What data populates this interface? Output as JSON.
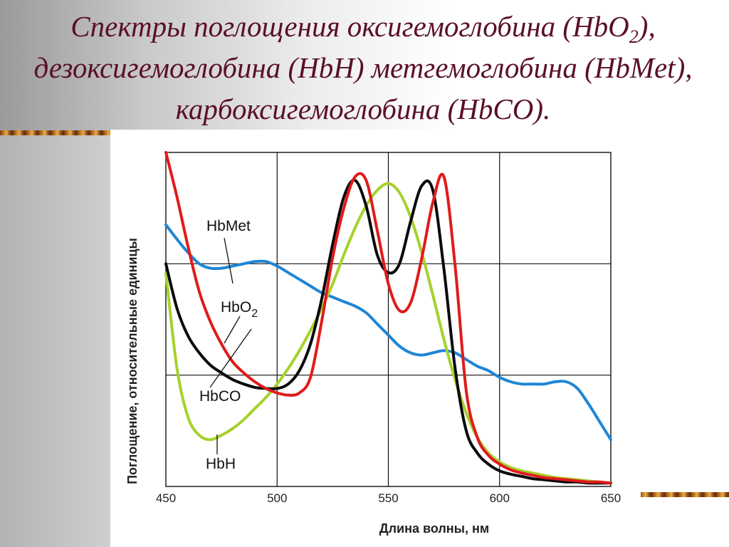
{
  "slide": {
    "title_part1": "Спектры поглощения оксигемоглобина (HbO",
    "title_sub": "2",
    "title_part2": "), дезоксигемоглобина (HbH) метгемоглобина (HbMet), карбоксигемоглобина (HbCO)."
  },
  "chart_data": {
    "type": "line",
    "title": "",
    "xlabel": "Длина волны, нм",
    "ylabel": "Поглощение, относительные единицы",
    "xlim": [
      450,
      650
    ],
    "ylim": [
      0,
      3
    ],
    "grid": true,
    "xticks": [
      450,
      500,
      550,
      600,
      650
    ],
    "yticks": [],
    "colors": {
      "HbMet": "#1f86d6",
      "HbO2": "#e01b1b",
      "HbCO": "#0b0b0b",
      "HbH": "#a6d12c",
      "grid": "#111111",
      "title": "#5a0f2a"
    },
    "series": [
      {
        "name": "HbMet",
        "label": "HbMet",
        "x": [
          450,
          455,
          460,
          465,
          470,
          475,
          480,
          485,
          490,
          495,
          500,
          505,
          510,
          515,
          520,
          525,
          530,
          535,
          540,
          545,
          550,
          555,
          560,
          565,
          570,
          575,
          580,
          585,
          590,
          595,
          600,
          605,
          610,
          615,
          620,
          625,
          630,
          635,
          640,
          645,
          650
        ],
        "y": [
          2.35,
          2.22,
          2.1,
          2.0,
          1.96,
          1.96,
          1.98,
          2.0,
          2.02,
          2.02,
          1.98,
          1.92,
          1.86,
          1.8,
          1.74,
          1.7,
          1.66,
          1.62,
          1.56,
          1.46,
          1.36,
          1.26,
          1.2,
          1.18,
          1.2,
          1.22,
          1.2,
          1.14,
          1.08,
          1.04,
          0.98,
          0.94,
          0.92,
          0.92,
          0.92,
          0.94,
          0.94,
          0.88,
          0.74,
          0.58,
          0.42
        ]
      },
      {
        "name": "HbO2",
        "label": "HbO2",
        "x": [
          450,
          455,
          460,
          465,
          470,
          475,
          480,
          485,
          490,
          495,
          500,
          505,
          510,
          515,
          520,
          525,
          530,
          535,
          540,
          545,
          550,
          555,
          560,
          565,
          570,
          575,
          580,
          585,
          590,
          595,
          600,
          605,
          610,
          615,
          620,
          625,
          630,
          635,
          640,
          645,
          650
        ],
        "y": [
          3.0,
          2.6,
          2.15,
          1.75,
          1.48,
          1.28,
          1.12,
          1.02,
          0.94,
          0.88,
          0.84,
          0.82,
          0.84,
          0.98,
          1.48,
          2.06,
          2.5,
          2.78,
          2.75,
          2.3,
          1.82,
          1.58,
          1.65,
          2.05,
          2.55,
          2.78,
          1.98,
          0.86,
          0.44,
          0.28,
          0.2,
          0.15,
          0.12,
          0.1,
          0.08,
          0.07,
          0.06,
          0.05,
          0.04,
          0.04,
          0.03
        ]
      },
      {
        "name": "HbCO",
        "label": "HbCO",
        "x": [
          450,
          455,
          460,
          465,
          470,
          475,
          480,
          485,
          490,
          495,
          500,
          505,
          510,
          515,
          520,
          525,
          530,
          535,
          540,
          545,
          550,
          555,
          560,
          565,
          570,
          575,
          580,
          585,
          590,
          595,
          600,
          605,
          610,
          615,
          620,
          625,
          630,
          635,
          640,
          645,
          650
        ],
        "y": [
          2.0,
          1.6,
          1.35,
          1.2,
          1.09,
          1.02,
          0.96,
          0.92,
          0.89,
          0.88,
          0.88,
          0.92,
          1.04,
          1.28,
          1.68,
          2.18,
          2.6,
          2.75,
          2.52,
          2.08,
          1.92,
          2.0,
          2.38,
          2.7,
          2.66,
          1.95,
          1.06,
          0.5,
          0.3,
          0.2,
          0.14,
          0.11,
          0.09,
          0.07,
          0.06,
          0.05,
          0.04,
          0.04,
          0.03,
          0.03,
          0.03
        ]
      },
      {
        "name": "HbH",
        "label": "HbH",
        "x": [
          450,
          455,
          460,
          465,
          470,
          475,
          480,
          485,
          490,
          495,
          500,
          505,
          510,
          515,
          520,
          525,
          530,
          535,
          540,
          545,
          550,
          555,
          560,
          565,
          570,
          575,
          580,
          585,
          590,
          595,
          600,
          605,
          610,
          615,
          620,
          625,
          630,
          635,
          640,
          645,
          650
        ],
        "y": [
          1.92,
          1.06,
          0.62,
          0.46,
          0.42,
          0.46,
          0.52,
          0.6,
          0.7,
          0.8,
          0.92,
          1.06,
          1.22,
          1.4,
          1.6,
          1.82,
          2.08,
          2.32,
          2.52,
          2.66,
          2.72,
          2.64,
          2.42,
          2.1,
          1.72,
          1.32,
          0.96,
          0.66,
          0.44,
          0.3,
          0.22,
          0.17,
          0.14,
          0.12,
          0.1,
          0.08,
          0.07,
          0.06,
          0.05,
          0.04,
          0.03
        ]
      }
    ],
    "annotations": [
      {
        "text": "HbMet",
        "target": "HbMet"
      },
      {
        "text": "HbO",
        "sub": "2",
        "target": "HbO2"
      },
      {
        "text": "HbCO",
        "target": "HbCO"
      },
      {
        "text": "HbH",
        "target": "HbH"
      }
    ]
  }
}
